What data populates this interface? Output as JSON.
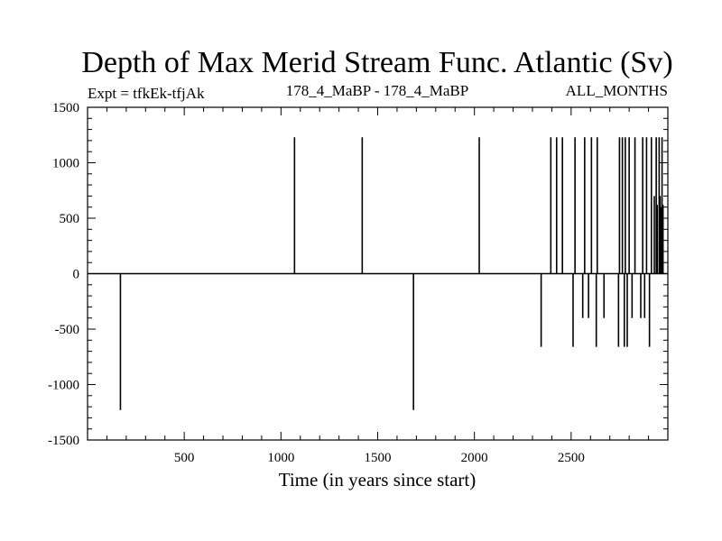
{
  "chart_data": {
    "type": "line",
    "title": "Depth of Max Merid Stream Func. Atlantic (Sv)",
    "subtitle_left": "Expt = tfkEk-tfjAk",
    "subtitle_center": "178_4_MaBP - 178_4_MaBP",
    "subtitle_right": "ALL_MONTHS",
    "xlabel": "Time (in years since start)",
    "ylabel": "",
    "xlim": [
      0,
      3000
    ],
    "ylim": [
      -1500,
      1500
    ],
    "xticks": [
      500,
      1000,
      1500,
      2000,
      2500
    ],
    "yticks": [
      1500,
      1000,
      500,
      0,
      -500,
      -1000,
      -1500
    ],
    "grid": false,
    "series": [
      {
        "baseline": 0,
        "spikes": [
          [
            170,
            -1230
          ],
          [
            1070,
            1230
          ],
          [
            1420,
            1230
          ],
          [
            1685,
            -1230
          ],
          [
            2025,
            1230
          ],
          [
            2345,
            -660
          ],
          [
            2395,
            1230
          ],
          [
            2425,
            1230
          ],
          [
            2455,
            1230
          ],
          [
            2510,
            -660
          ],
          [
            2520,
            1230
          ],
          [
            2560,
            -400
          ],
          [
            2570,
            1230
          ],
          [
            2590,
            -400
          ],
          [
            2605,
            1230
          ],
          [
            2630,
            -660
          ],
          [
            2635,
            1230
          ],
          [
            2670,
            -400
          ],
          [
            2745,
            -660
          ],
          [
            2750,
            1230
          ],
          [
            2765,
            1230
          ],
          [
            2775,
            -660
          ],
          [
            2780,
            1230
          ],
          [
            2790,
            -660
          ],
          [
            2800,
            1230
          ],
          [
            2815,
            -400
          ],
          [
            2830,
            1230
          ],
          [
            2860,
            -400
          ],
          [
            2870,
            1230
          ],
          [
            2880,
            -400
          ],
          [
            2890,
            1230
          ],
          [
            2905,
            -660
          ],
          [
            2915,
            1230
          ],
          [
            2930,
            700
          ],
          [
            2940,
            1230
          ],
          [
            2945,
            620
          ],
          [
            2955,
            1230
          ],
          [
            2960,
            700
          ],
          [
            2965,
            600
          ],
          [
            2970,
            1230
          ],
          [
            2975,
            620
          ]
        ]
      }
    ]
  }
}
